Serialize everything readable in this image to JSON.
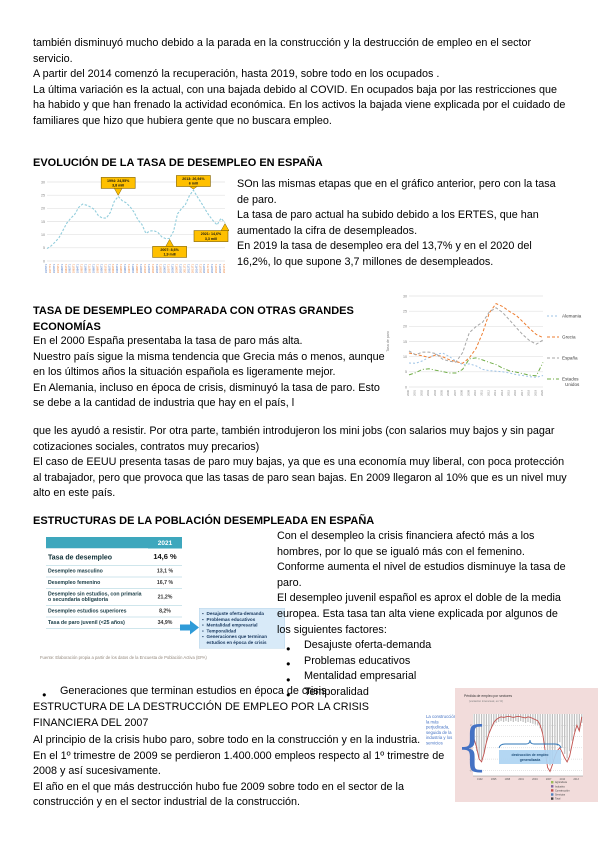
{
  "colors": {
    "callout_yellow": "#FFC000",
    "table_header_teal": "#3EA7BD",
    "factor_box_blue": "#D8EAF8",
    "arrow_blue": "#2F9BD8",
    "pink_chart_bg": "#F2DCDB",
    "annotation_blue": "#4472C4",
    "line_red": "#C0504D"
  },
  "intro": {
    "paragraphs": [
      "también disminuyó mucho debido a la parada en la construcción y la destrucción de empleo en el sector servicio.",
      "A partir del 2014 comenzó la recuperación, hasta 2019, sobre todo en los ocupados .",
      "La última variación es la actual, con una bajada debido al COVID. En ocupados baja por las restricciones que ha habido y que han frenado la actividad económica. En los activos la bajada viene explicada por el cuidado de familiares que hizo que hubiera gente que no buscara empleo."
    ]
  },
  "sections": {
    "evolucion": {
      "heading": "EVOLUCIÓN DE LA TASA DE DESEMPLEO EN ESPAÑA",
      "paragraphs": [
        "SOn las mismas etapas que en el gráfico anterior, pero con la tasa de paro.",
        "La tasa de paro actual ha subido debido a los ERTES, que han aumentado la cifra de desempleados.",
        "En 2019 la tasa de desempleo era del 13,7% y en el 2020 del 16,2%, lo que supone 3,7 millones de desempleados."
      ]
    },
    "comparada": {
      "heading": "TASA DE DESEMPLEO COMPARADA CON OTRAS GRANDES ECONOMÍAS",
      "paragraphs_narrow": [
        "En el 2000 España presentaba la tasa de paro más alta.",
        "Nuestro país sigue la misma tendencia que Grecia más o menos, aunque en los últimos años la situación española es ligeramente mejor.",
        "En Alemania, incluso en época de crisis, disminuyó la tasa de paro. Esto se debe a la cantidad de industria que hay en el país, l"
      ],
      "paragraphs_wide": [
        "que les ayudó a resistir. Por otra parte, también introdujeron los mini jobs (con salarios muy bajos y sin pagar cotizaciones sociales, contratos muy precarios)",
        "El caso de EEUU presenta tasas de paro muy bajas, ya que es una economía muy liberal, con poca protección al trabajador, pero que provoca que las tasas de paro sean bajas. En 2009 llegaron al 10% que es un nivel muy alto en este país."
      ]
    },
    "estructuras": {
      "heading": "ESTRUCTURAS DE LA POBLACIÓN DESEMPLEADA EN ESPAÑA",
      "paragraphs": [
        "Con el desempleo la crisis financiera afectó más a los hombres, por lo que se igualó más con el femenino.",
        "Conforme aumenta el nivel de estudios disminuye la tasa de paro.",
        "El desempleo juvenil español es aprox el doble de la media europea. Esta tasa tan alta viene explicada por algunos de los siguientes factores:"
      ],
      "bullets": [
        "Desajuste oferta-demanda",
        "Problemas educativos",
        "Mentalidad empresarial",
        "Temporalidad"
      ],
      "bullet_continuation": "Generaciones que terminan estudios en época de crisis",
      "box_bullets": [
        "Desajuste oferta-demanda",
        "Problemas educativos",
        "Mentalidad empresarial",
        "Temporalidad",
        "Generaciones que terminan estudios en época de crisis"
      ]
    },
    "destruccion": {
      "heading": "ESTRUCTURA DE LA DESTRUCCIÓN DE EMPLEO POR LA CRISIS FINANCIERA DEL 2007",
      "paragraphs": [
        "Al principio de la crisis hubo paro, sobre todo en la construcción y en la industria.",
        "En el 1º trimestre de 2009 se perdieron 1.400.000 empleos respecto al 1º trimestre de 2008 y así sucesivamente.",
        "El año en el que más destrucción hubo fue 2009 sobre todo en el sector de la construcción y en el sector industrial de la construcción."
      ],
      "margin_note": "La construcción es la más perjudicada, seguida de la industria y los servicios"
    }
  },
  "chart_data": [
    {
      "type": "line",
      "title": "Evolución de la tasa de desempleo en España",
      "x": [
        1976,
        1977,
        1978,
        1979,
        1980,
        1981,
        1982,
        1983,
        1984,
        1985,
        1986,
        1987,
        1988,
        1989,
        1990,
        1991,
        1992,
        1993,
        1994,
        1995,
        1996,
        1997,
        1998,
        1999,
        2000,
        2001,
        2002,
        2003,
        2004,
        2005,
        2006,
        2007,
        2008,
        2009,
        2010,
        2011,
        2012,
        2013,
        2014,
        2015,
        2016,
        2017,
        2018,
        2019,
        2020,
        2021
      ],
      "series": [
        {
          "name": "Tasa de paro",
          "color": "#92CDDC",
          "dash": "2.4,1.6",
          "values": [
            4.7,
            5.7,
            7.1,
            8.8,
            11.5,
            14.4,
            16.2,
            17.7,
            20.3,
            21.6,
            21.2,
            20.5,
            19.5,
            17.2,
            16.3,
            16.3,
            18.4,
            22.6,
            24.55,
            22.9,
            22.1,
            20.6,
            18.6,
            15.6,
            13.9,
            10.5,
            11.4,
            11.5,
            10.9,
            9.2,
            8.5,
            8.6,
            11.3,
            17.9,
            19.9,
            21.4,
            24.8,
            26.94,
            24.4,
            22.1,
            19.6,
            17.2,
            15.3,
            13.7,
            16.2,
            14.6
          ]
        }
      ],
      "ylim": [
        0,
        30
      ],
      "yticks": [
        0,
        5,
        10,
        15,
        20,
        25,
        30
      ],
      "grid": true,
      "legend_position": "none",
      "callouts": [
        {
          "x": 1994,
          "y": 24.55,
          "dir": "up",
          "lines": [
            "1994: 24,55%",
            "3,8 mill"
          ]
        },
        {
          "x": 2013,
          "y": 26.94,
          "dir": "up",
          "lines": [
            "2013: 26,94%",
            "6 mill"
          ]
        },
        {
          "x": 2007,
          "y": 8.6,
          "dir": "down",
          "lines": [
            "2007: 8,6%",
            "1,9 mill"
          ]
        },
        {
          "x": 2021,
          "y": 14.6,
          "dir": "down",
          "lines": [
            "2021: 14,6%",
            "3,3 mill"
          ]
        }
      ]
    },
    {
      "type": "line",
      "title": "Tasa de desempleo comparada con otras grandes economías",
      "ylabel": "Tasa de paro",
      "x": [
        2000,
        2001,
        2002,
        2003,
        2004,
        2005,
        2006,
        2007,
        2008,
        2009,
        2010,
        2011,
        2012,
        2013,
        2014,
        2015,
        2016,
        2017,
        2018,
        2019,
        2020
      ],
      "series": [
        {
          "name": "Alemania",
          "color": "#9DC3E6",
          "dash": "2,2",
          "values": [
            7.9,
            7.8,
            8.6,
            9.8,
            10.7,
            11.2,
            10.1,
            8.5,
            7.4,
            7.6,
            7.0,
            5.8,
            5.4,
            5.2,
            5.0,
            4.6,
            4.1,
            3.8,
            3.4,
            3.2,
            3.8
          ]
        },
        {
          "name": "Grecia",
          "color": "#ED7D31",
          "dash": "3,2",
          "values": [
            11.2,
            10.7,
            10.3,
            9.7,
            10.6,
            10.0,
            9.0,
            8.4,
            7.8,
            9.6,
            12.7,
            17.9,
            24.5,
            27.5,
            26.5,
            24.9,
            23.6,
            21.5,
            19.3,
            17.3,
            16.3
          ]
        },
        {
          "name": "España",
          "color": "#A5A5A5",
          "dash": "3,2",
          "values": [
            11.9,
            10.6,
            11.5,
            11.5,
            11.0,
            9.2,
            8.5,
            8.2,
            11.3,
            17.9,
            19.9,
            21.4,
            24.8,
            26.1,
            24.5,
            22.1,
            19.6,
            17.2,
            15.3,
            14.1,
            15.5
          ]
        },
        {
          "name": "Estados Unidos",
          "color": "#70AD47",
          "dash": "4,2,1,2",
          "values": [
            4.0,
            4.7,
            5.8,
            6.0,
            5.5,
            5.1,
            4.6,
            4.6,
            5.8,
            9.3,
            9.6,
            8.9,
            8.1,
            7.4,
            6.2,
            5.3,
            4.9,
            4.4,
            3.9,
            3.7,
            8.1
          ]
        }
      ],
      "ylim": [
        0,
        30
      ],
      "yticks": [
        0,
        5,
        10,
        15,
        20,
        25,
        30
      ],
      "grid": true,
      "legend_position": "right"
    },
    {
      "type": "table",
      "columns": [
        "",
        "2021"
      ],
      "rows": [
        [
          "Tasa de desempleo",
          "14,6 %"
        ],
        [
          "Desempleo masculino",
          "13,1 %"
        ],
        [
          "Desempleo femenino",
          "16,7 %"
        ],
        [
          "Desempleo sin estudios, con primaria o secundaria obligatoria",
          "21,2%"
        ],
        [
          "Desempleo estudios superiores",
          "8,2%"
        ],
        [
          "Tasa de paro juvenil (<25 años)",
          "34,9%"
        ]
      ],
      "caption": "Fuente: Elaboración propia a partir de los datos de la Encuesta de Población Activa (EPA)"
    },
    {
      "type": "bar",
      "title": "Pérdida de empleo por sectores",
      "subtitle": "(variación interanual, en %)",
      "categories": [
        "1992",
        "1995",
        "1998",
        "2001",
        "2004",
        "2007",
        "2010",
        "2013"
      ],
      "bars": [
        -3.0,
        -4.2,
        -5.0,
        -5.2,
        -4.5,
        -3.2,
        -2.2,
        -1.6,
        -1.2,
        -1.0,
        -0.9,
        -0.8,
        -0.9,
        -0.8,
        -0.9,
        -0.8,
        -0.9,
        -0.8,
        -0.9,
        -0.8,
        -0.9,
        -1.0,
        -0.9,
        -1.0,
        -1.1,
        -1.2,
        -1.3,
        -1.6,
        -2.2,
        -3.5,
        -5.0,
        -5.8,
        -5.2,
        -4.2,
        -3.6,
        -3.2,
        -3.8,
        -4.5,
        -5.0,
        -4.2,
        -3.0,
        -2.0,
        -1.4,
        -1.8,
        -1.0
      ],
      "line": [
        -0.5,
        -2.0,
        -4.0,
        -4.5,
        -3.0,
        -1.0,
        0.5,
        1.5,
        2.5,
        3.0,
        3.3,
        3.5,
        3.4,
        3.5,
        3.6,
        3.5,
        3.4,
        3.5,
        3.6,
        3.5,
        3.4,
        3.3,
        3.5,
        3.4,
        3.2,
        3.0,
        2.8,
        2.0,
        0.5,
        -2.5,
        -5.5,
        -6.2,
        -5.0,
        -3.5,
        -2.5,
        -2.0,
        -2.8,
        -3.8,
        -4.5,
        -3.5,
        -1.5,
        0.5,
        2.0,
        1.0,
        3.5
      ],
      "ylim": [
        -7,
        4
      ],
      "legend": [
        "Agricultura",
        "Industria",
        "Construcción",
        "Servicios",
        "Total"
      ],
      "legend_colors": [
        "#9BBB59",
        "#8064A2",
        "#C0504D",
        "#4F81BD",
        "#404040"
      ],
      "annotation_lines": [
        "destrucción de empleo",
        "generalizada"
      ]
    }
  ]
}
